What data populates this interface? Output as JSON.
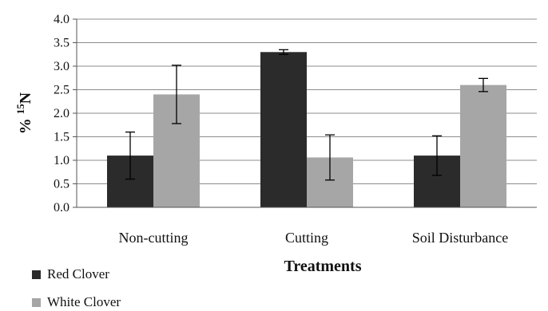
{
  "chart_data": {
    "type": "bar",
    "title": "",
    "xlabel": "Treatments",
    "ylabel_parts": {
      "prefix": "% ",
      "superscript": "15",
      "suffix": "N"
    },
    "categories": [
      "Non-cutting",
      "Cutting",
      "Soil Disturbance"
    ],
    "ylim": [
      0,
      4.0
    ],
    "yticks": [
      "0.0",
      "0.5",
      "1.0",
      "1.5",
      "2.0",
      "2.5",
      "3.0",
      "3.5",
      "4.0"
    ],
    "grid": true,
    "legend_position": "bottom-left",
    "series": [
      {
        "name": "Red Clover",
        "color": "#2b2b2b",
        "values": [
          1.1,
          3.3,
          1.1
        ],
        "errors": [
          0.5,
          0.05,
          0.42
        ]
      },
      {
        "name": "White Clover",
        "color": "#a6a6a6",
        "values": [
          2.4,
          1.06,
          2.6
        ],
        "errors": [
          0.62,
          0.48,
          0.14
        ]
      }
    ]
  }
}
